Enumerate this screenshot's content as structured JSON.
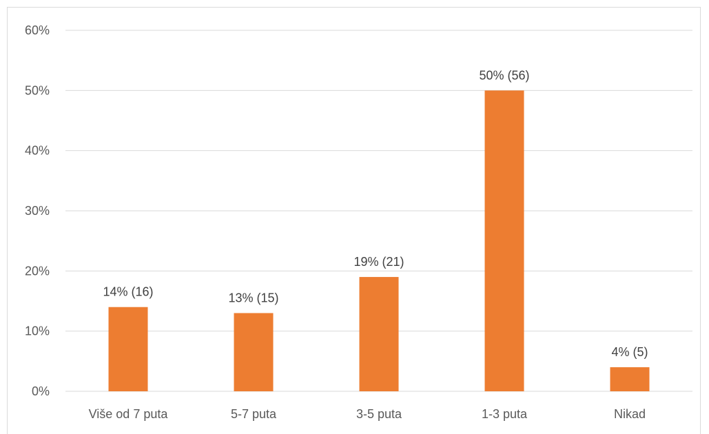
{
  "chart_data": {
    "type": "bar",
    "categories": [
      "Više od 7 puta",
      "5-7 puta",
      "3-5 puta",
      "1-3 puta",
      "Nikad"
    ],
    "series": [
      {
        "values": [
          14,
          13,
          19,
          50,
          4
        ],
        "data_labels": [
          "14% (16)",
          "13% (15)",
          "19% (21)",
          "50% (56)",
          "4% (5)"
        ],
        "color": "#ED7D31"
      }
    ],
    "y_ticks": [
      "0%",
      "10%",
      "20%",
      "30%",
      "40%",
      "50%",
      "60%"
    ],
    "ylim": [
      0,
      60
    ],
    "grid": true,
    "legend": "none"
  }
}
